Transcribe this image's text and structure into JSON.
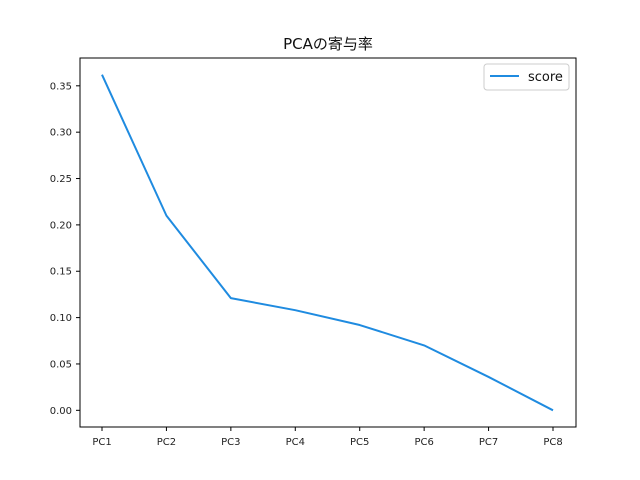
{
  "chart_data": {
    "type": "line",
    "title": "PCAの寄与率",
    "xlabel": "",
    "ylabel": "",
    "categories": [
      "PC1",
      "PC2",
      "PC3",
      "PC4",
      "PC5",
      "PC6",
      "PC7",
      "PC8"
    ],
    "series": [
      {
        "name": "score",
        "color": "#1f8be0",
        "values": [
          0.362,
          0.21,
          0.121,
          0.108,
          0.092,
          0.07,
          0.036,
          0.0
        ]
      }
    ],
    "yticks": [
      "0.00",
      "0.05",
      "0.10",
      "0.15",
      "0.20",
      "0.25",
      "0.30",
      "0.35"
    ],
    "ylim": [
      -0.018,
      0.38
    ],
    "grid": false,
    "legend_position": "top-right"
  }
}
